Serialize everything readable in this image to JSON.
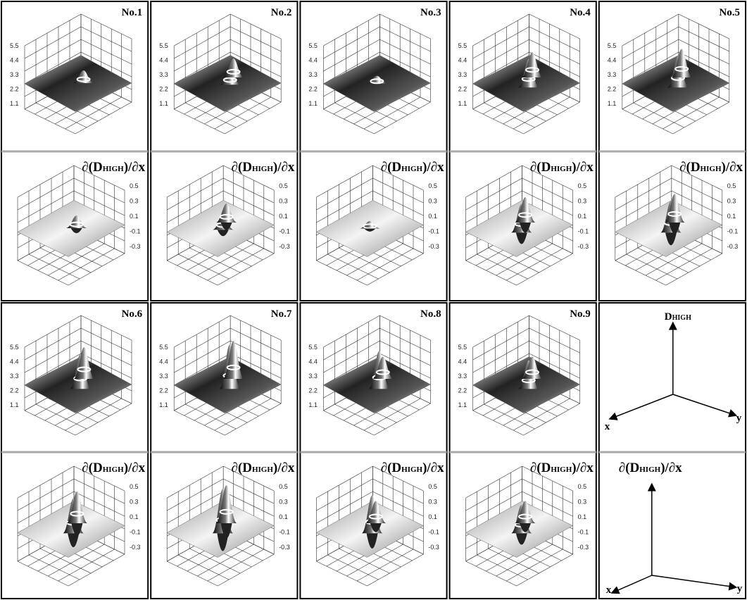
{
  "panels": [
    {
      "title": "No.1"
    },
    {
      "title": "No.2"
    },
    {
      "title": "No.3"
    },
    {
      "title": "No.4"
    },
    {
      "title": "No.5"
    },
    {
      "title": "No.6"
    },
    {
      "title": "No.7"
    },
    {
      "title": "No.8"
    },
    {
      "title": "No.9"
    }
  ],
  "surface_zticks": [
    "5.5",
    "4.4",
    "3.3",
    "2.2",
    "1.1"
  ],
  "derivative_label": {
    "prefix": "∂(D",
    "sub": "HIGH",
    "suffix": ")/∂x"
  },
  "derivative_zticks": [
    "0.5",
    "0.3",
    "0.1",
    "-0.1",
    "-0.3"
  ],
  "axes_legend": {
    "z": "D",
    "z_sub": "HIGH",
    "x": "x",
    "y": "y"
  }
}
